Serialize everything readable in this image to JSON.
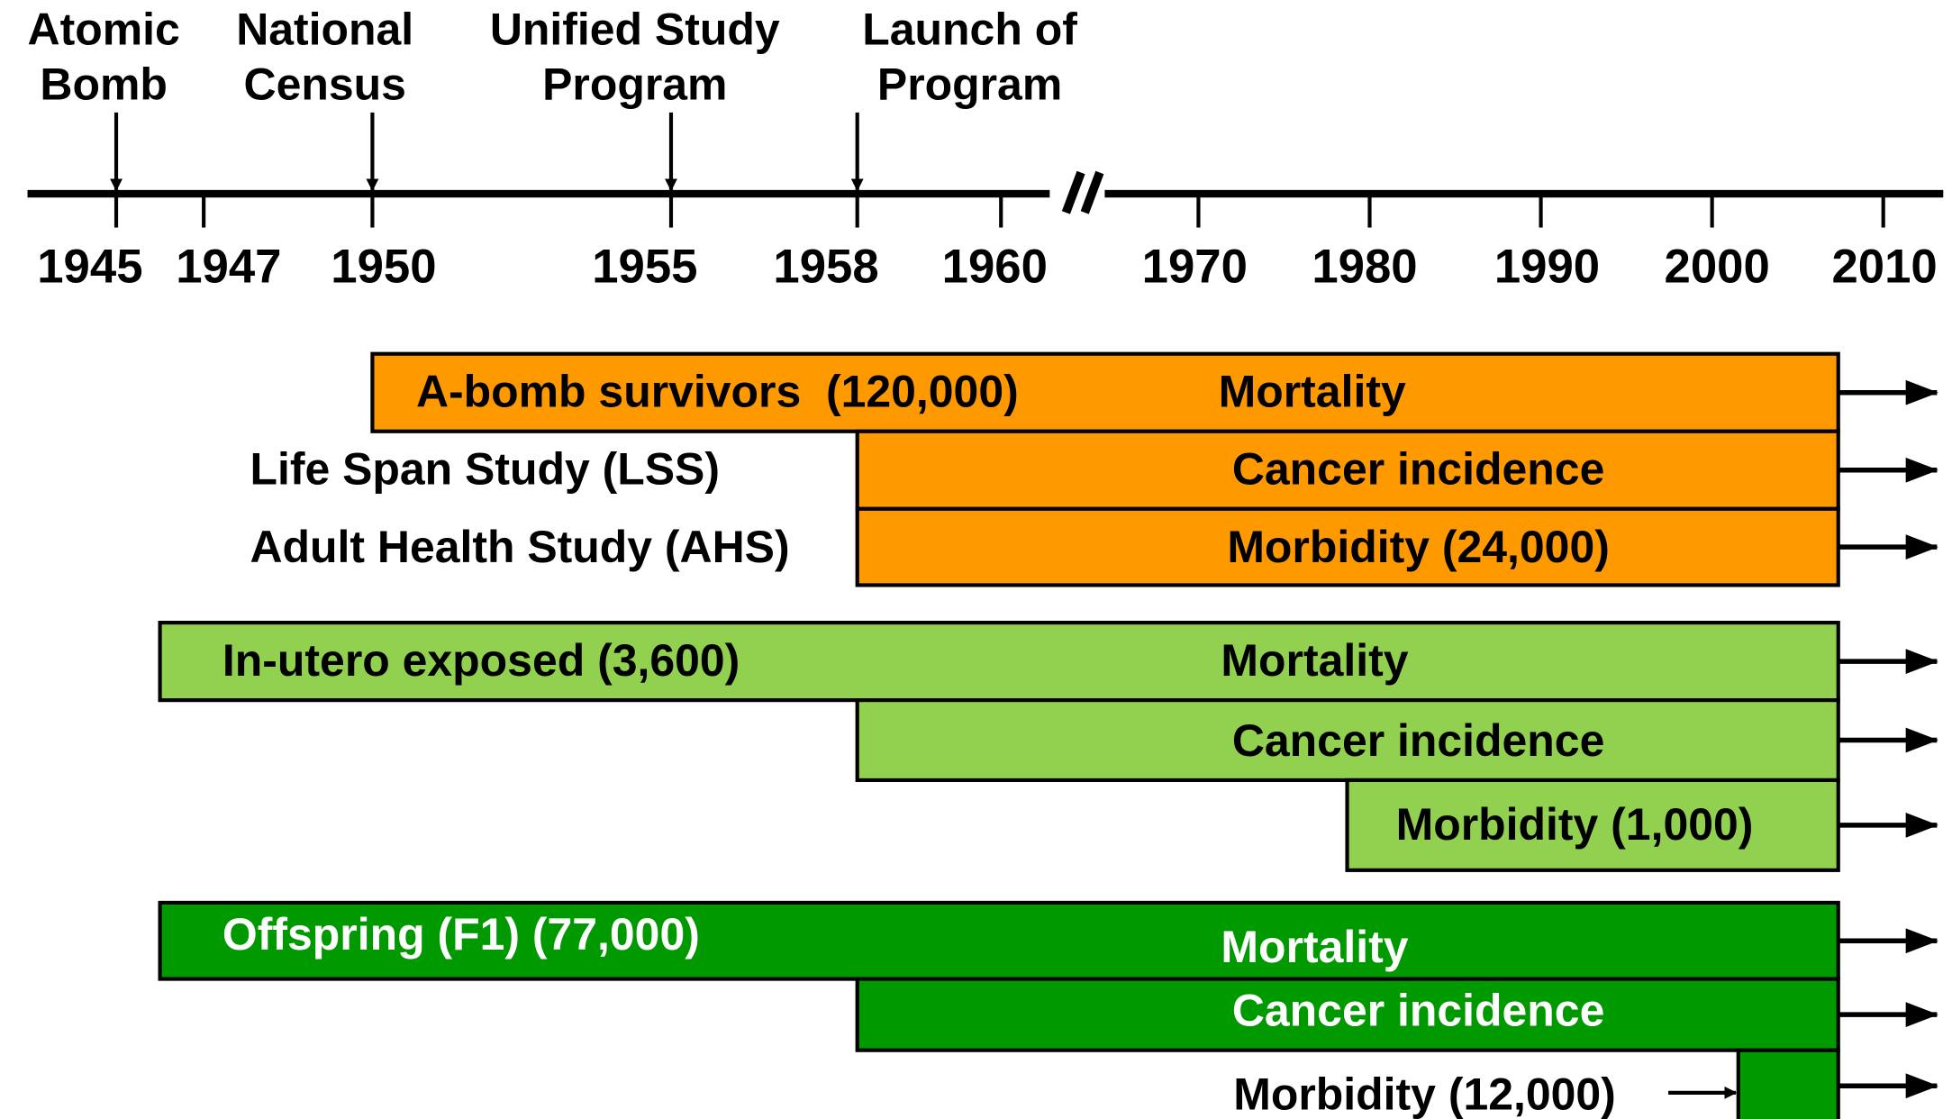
{
  "timeline": {
    "events": [
      {
        "lines": [
          "Atomic",
          "Bomb"
        ]
      },
      {
        "lines": [
          "National",
          "Census"
        ]
      },
      {
        "lines": [
          "Unified Study",
          "Program"
        ]
      },
      {
        "lines": [
          "Launch of",
          "Program"
        ]
      }
    ],
    "ticks": [
      "1945",
      "1947",
      "1950",
      "1955",
      "1958",
      "1960",
      "1970",
      "1980",
      "1990",
      "2000",
      "2010"
    ]
  },
  "cohorts": [
    {
      "rows": [
        {
          "name": "A-bomb survivors  (120,000)",
          "label": "Mortality"
        },
        {
          "side": "Life Span Study (LSS)",
          "label": "Cancer incidence"
        },
        {
          "side": "Adult Health Study (AHS)",
          "label": "Morbidity (24,000)"
        }
      ]
    },
    {
      "rows": [
        {
          "name": "In-utero exposed (3,600)",
          "label": "Mortality"
        },
        {
          "label": "Cancer incidence"
        },
        {
          "label": "Morbidity (1,000)"
        }
      ]
    },
    {
      "rows": [
        {
          "name": "Offspring (F1) (77,000)",
          "label": "Mortality"
        },
        {
          "label": "Cancer incidence"
        },
        {
          "label": "Morbidity (12,000)"
        }
      ]
    }
  ]
}
